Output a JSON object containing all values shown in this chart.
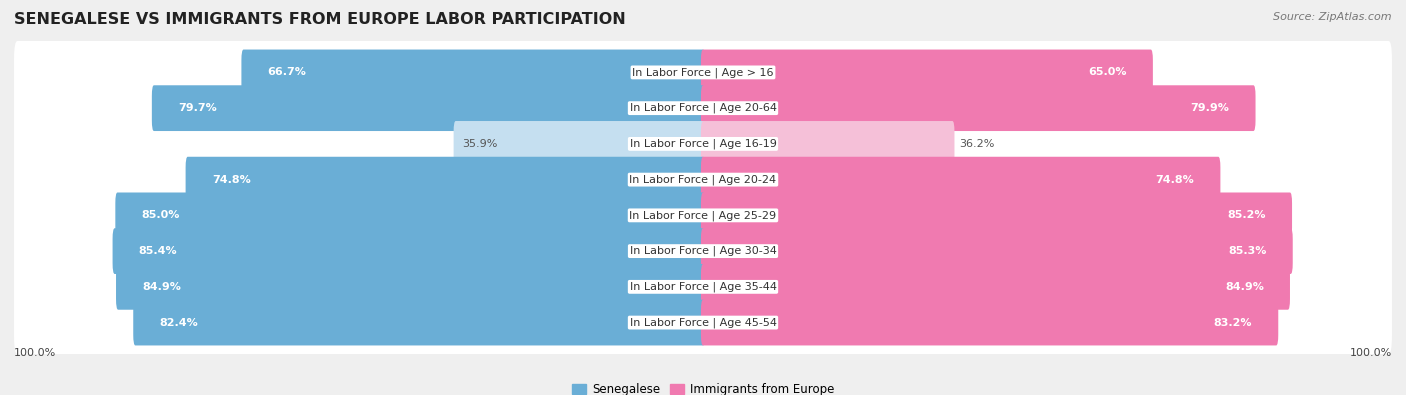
{
  "title": "SENEGALESE VS IMMIGRANTS FROM EUROPE LABOR PARTICIPATION",
  "source": "Source: ZipAtlas.com",
  "categories": [
    "In Labor Force | Age > 16",
    "In Labor Force | Age 20-64",
    "In Labor Force | Age 16-19",
    "In Labor Force | Age 20-24",
    "In Labor Force | Age 25-29",
    "In Labor Force | Age 30-34",
    "In Labor Force | Age 35-44",
    "In Labor Force | Age 45-54"
  ],
  "senegalese_values": [
    66.7,
    79.7,
    35.9,
    74.8,
    85.0,
    85.4,
    84.9,
    82.4
  ],
  "europe_values": [
    65.0,
    79.9,
    36.2,
    74.8,
    85.2,
    85.3,
    84.9,
    83.2
  ],
  "senegalese_color_high": "#6aaed6",
  "senegalese_color_low": "#c5dff0",
  "europe_color_high": "#f07ab0",
  "europe_color_low": "#f5c0d8",
  "threshold": 50.0,
  "max_value": 100.0,
  "legend_senegalese": "Senegalese",
  "legend_europe": "Immigrants from Europe",
  "bg_color": "#efefef",
  "bar_bg_color": "#ffffff",
  "title_fontsize": 11.5,
  "label_fontsize": 8.0,
  "value_fontsize": 8.0,
  "source_fontsize": 8.0,
  "legend_fontsize": 8.5
}
